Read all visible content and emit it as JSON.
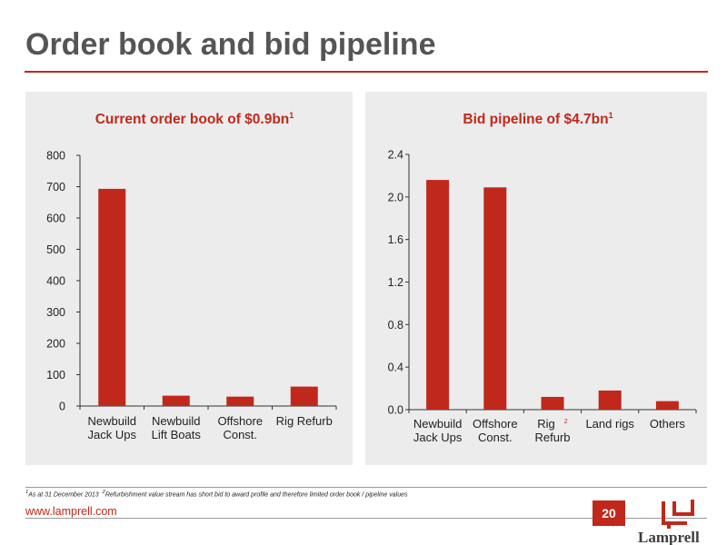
{
  "page": {
    "title": "Order book and bid pipeline",
    "url": "www.lamprell.com",
    "page_number": "20",
    "footnote_1_marker": "1",
    "footnote_1_text": "As at 31 December 2013",
    "footnote_2_marker": "2",
    "footnote_2_text": "Refurbishment value stream has short bid to award profile and therefore limited order book / pipeline values",
    "logo_text": "Lamprell",
    "colors": {
      "accent": "#c0281b",
      "panel": "#ececec",
      "title": "#555555"
    }
  },
  "chart_data": [
    {
      "type": "bar",
      "title": "Current order book of $0.9bn",
      "title_superscript": "1",
      "categories": [
        [
          "Newbuild",
          "Jack Ups"
        ],
        [
          "Newbuild",
          "Lift Boats"
        ],
        [
          "Offshore",
          "Const."
        ],
        [
          "Rig Refurb"
        ]
      ],
      "values": [
        693,
        33,
        30,
        62
      ],
      "ylim": [
        0,
        800
      ],
      "yticks": [
        "0",
        "100",
        "200",
        "300",
        "400",
        "500",
        "600",
        "700",
        "800"
      ],
      "xlabel": "",
      "ylabel": "",
      "grid": false,
      "bar_color": "#c0281b"
    },
    {
      "type": "bar",
      "title": "Bid pipeline of $4.7bn",
      "title_superscript": "1",
      "categories": [
        [
          "Newbuild",
          "Jack Ups"
        ],
        [
          "Offshore",
          "Const."
        ],
        [
          "Rig",
          "Refurb"
        ],
        [
          "Land rigs"
        ],
        [
          "Others"
        ]
      ],
      "category_superscript": {
        "2": "2"
      },
      "values": [
        2.16,
        2.09,
        0.12,
        0.18,
        0.08
      ],
      "ylim": [
        0,
        2.4
      ],
      "yticks": [
        "0.0",
        "0.4",
        "0.8",
        "1.2",
        "1.6",
        "2.0",
        "2.4"
      ],
      "xlabel": "",
      "ylabel": "",
      "grid": false,
      "bar_color": "#c0281b"
    }
  ]
}
